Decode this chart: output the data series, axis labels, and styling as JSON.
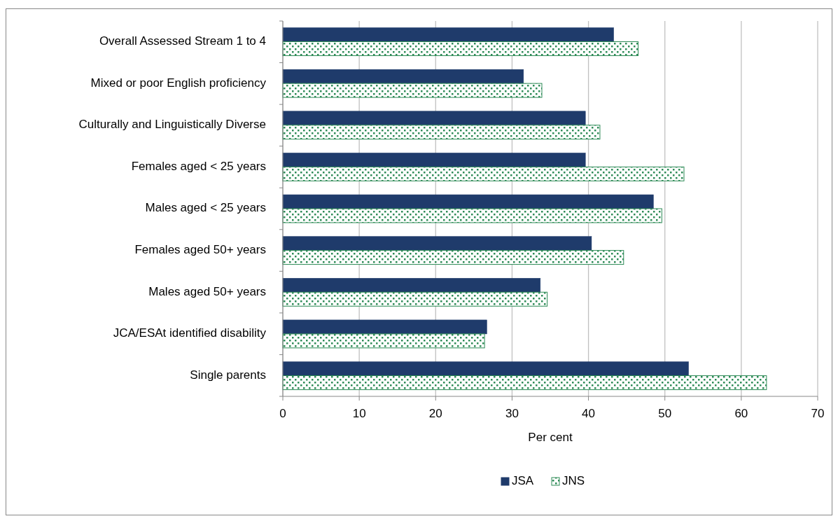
{
  "chart_data": {
    "type": "bar",
    "orientation": "horizontal",
    "xlabel": "Per cent",
    "categories": [
      "Overall Assessed Stream 1 to 4",
      "Mixed or poor English proficiency",
      "Culturally and Linguistically Diverse",
      "Females aged < 25 years",
      "Males aged < 25 years",
      "Females aged 50+ years",
      "Males aged 50+ years",
      "JCA/ESAt identified disability",
      "Single parents"
    ],
    "series": [
      {
        "name": "JSA",
        "color": "#1f3b6b",
        "values": [
          43.3,
          31.5,
          39.6,
          39.6,
          48.5,
          40.4,
          33.7,
          26.7,
          53.1
        ]
      },
      {
        "name": "JNS",
        "color": "#2e8b57",
        "values": [
          46.5,
          33.9,
          41.5,
          52.5,
          49.6,
          44.6,
          34.6,
          26.4,
          63.3
        ]
      }
    ],
    "xlim": [
      0,
      70
    ],
    "xticks": [
      0,
      10,
      20,
      30,
      40,
      50,
      60,
      70
    ],
    "grid": "x",
    "legend": "bottom"
  }
}
